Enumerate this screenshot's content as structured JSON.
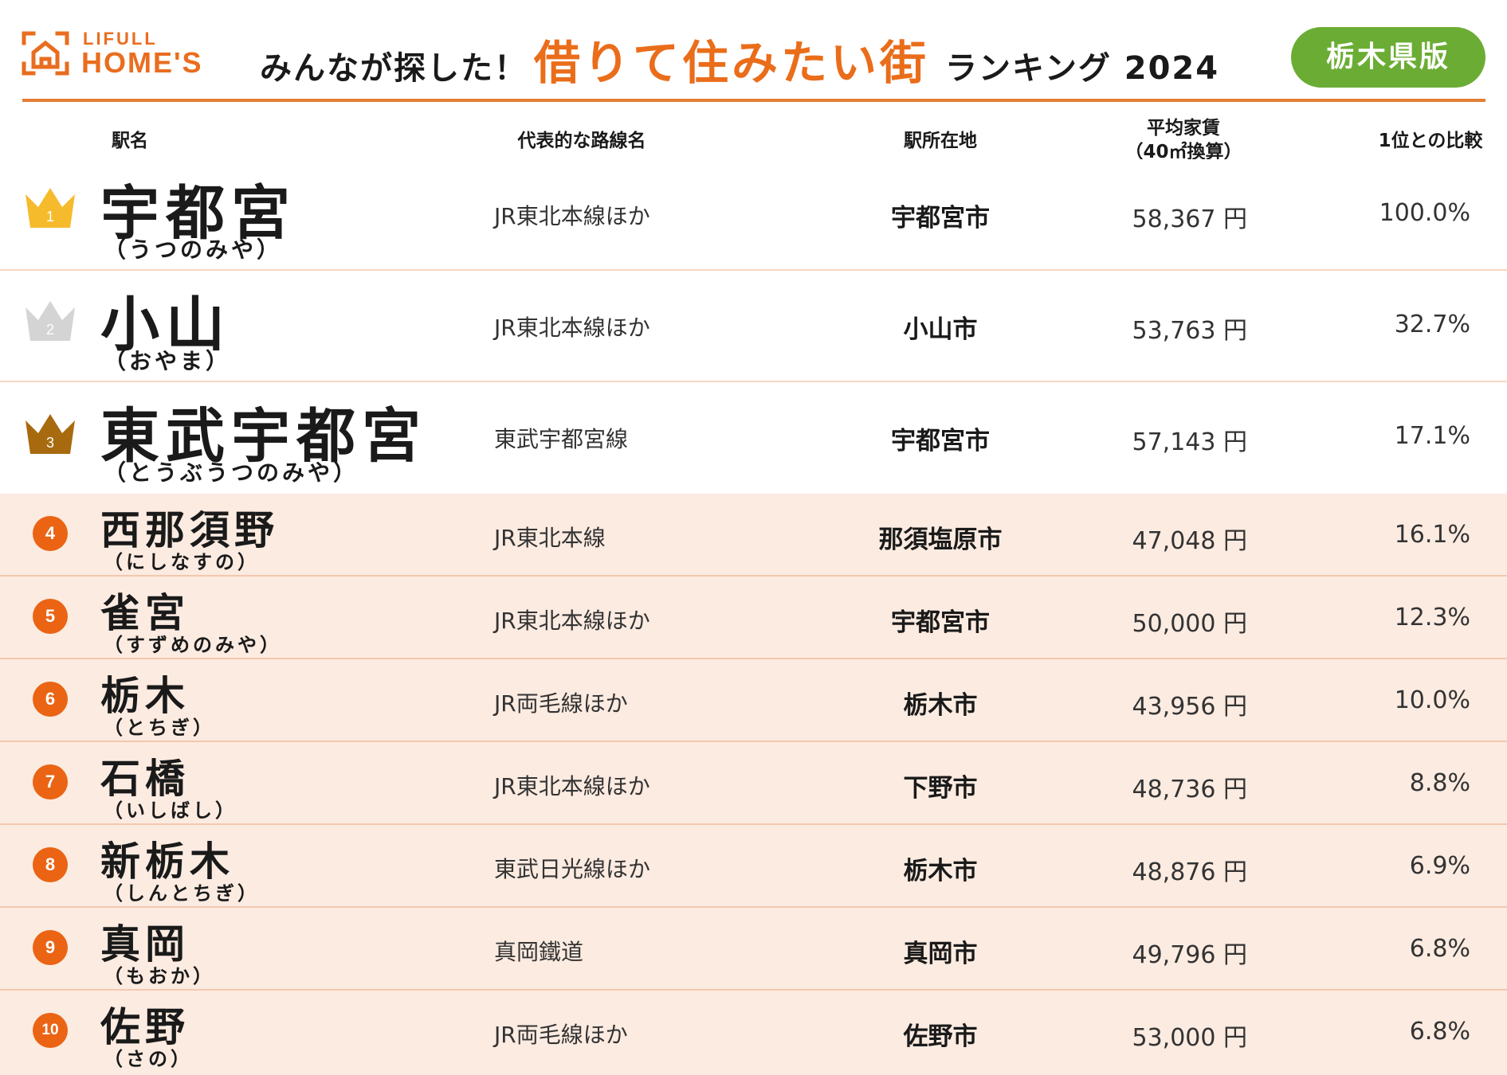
{
  "header": {
    "logo_small": "LIFULL",
    "logo_big": "HOME'S",
    "title_prefix": "みんなが探した！",
    "title_main": "借りて住みたい街",
    "title_suffix": "ランキング 2024",
    "badge": "栃木県版"
  },
  "columns": {
    "station": "駅名",
    "line": "代表的な路線名",
    "location": "駅所在地",
    "rent_line1": "平均家賃",
    "rent_line2": "（40㎡換算）",
    "ratio": "1位との比較"
  },
  "colors": {
    "accent": "#ea6d1a",
    "badge": "#6bad34",
    "gold": "#f6bb2c",
    "silver": "#d4d4d4",
    "bronze": "#a86a0f",
    "pink_row": "#fcebe1"
  },
  "rows": [
    {
      "rank": "1",
      "station": "宇都宮",
      "kana": "（うつのみや）",
      "line": "JR東北本線ほか",
      "location": "宇都宮市",
      "rent": "58,367 円",
      "ratio": "100.0%",
      "icon": "gold-crown-icon"
    },
    {
      "rank": "2",
      "station": "小山",
      "kana": "（おやま）",
      "line": "JR東北本線ほか",
      "location": "小山市",
      "rent": "53,763 円",
      "ratio": "32.7%",
      "icon": "silver-crown-icon"
    },
    {
      "rank": "3",
      "station": "東武宇都宮",
      "kana": "（とうぶうつのみや）",
      "line": "東武宇都宮線",
      "location": "宇都宮市",
      "rent": "57,143 円",
      "ratio": "17.1%",
      "icon": "bronze-crown-icon"
    },
    {
      "rank": "4",
      "station": "西那須野",
      "kana": "（にしなすの）",
      "line": "JR東北本線",
      "location": "那須塩原市",
      "rent": "47,048 円",
      "ratio": "16.1%"
    },
    {
      "rank": "5",
      "station": "雀宮",
      "kana": "（すずめのみや）",
      "line": "JR東北本線ほか",
      "location": "宇都宮市",
      "rent": "50,000 円",
      "ratio": "12.3%"
    },
    {
      "rank": "6",
      "station": "栃木",
      "kana": "（とちぎ）",
      "line": "JR両毛線ほか",
      "location": "栃木市",
      "rent": "43,956 円",
      "ratio": "10.0%"
    },
    {
      "rank": "7",
      "station": "石橋",
      "kana": "（いしばし）",
      "line": "JR東北本線ほか",
      "location": "下野市",
      "rent": "48,736 円",
      "ratio": "8.8%"
    },
    {
      "rank": "8",
      "station": "新栃木",
      "kana": "（しんとちぎ）",
      "line": "東武日光線ほか",
      "location": "栃木市",
      "rent": "48,876 円",
      "ratio": "6.9%"
    },
    {
      "rank": "9",
      "station": "真岡",
      "kana": "（もおか）",
      "line": "真岡鐵道",
      "location": "真岡市",
      "rent": "49,796 円",
      "ratio": "6.8%"
    },
    {
      "rank": "10",
      "station": "佐野",
      "kana": "（さの）",
      "line": "JR両毛線ほか",
      "location": "佐野市",
      "rent": "53,000 円",
      "ratio": "6.8%"
    }
  ]
}
